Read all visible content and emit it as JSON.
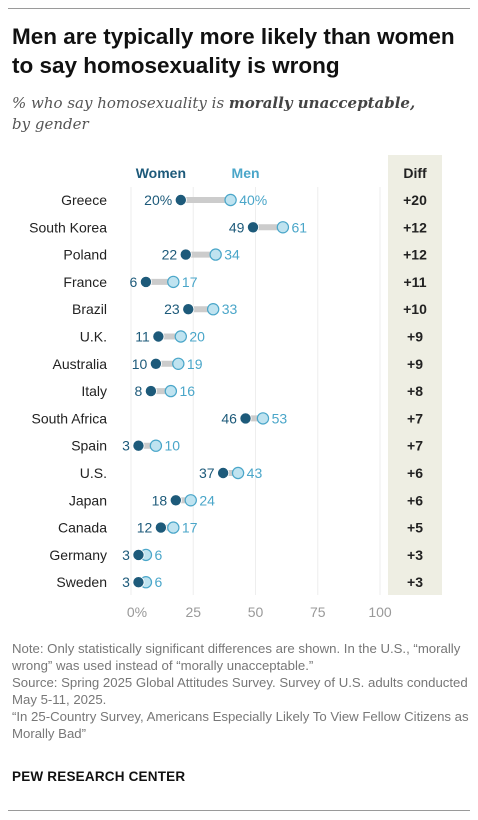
{
  "header": {
    "title": "Men are typically more likely than women to say homosexuality is wrong",
    "subtitle_prefix": "% who say homosexuality is ",
    "subtitle_emphasis": "morally unacceptable,",
    "subtitle_suffix": "by gender"
  },
  "colors": {
    "women": "#1d5a7a",
    "men": "#4aa6c9",
    "men_fill": "#bfe3f0",
    "connector": "#cccccc",
    "diff_column_bg": "#eeeee3",
    "axis_label": "#999999"
  },
  "chart_data": {
    "type": "dot_plot",
    "legend": [
      "Women",
      "Men"
    ],
    "diff_header": "Diff",
    "xlim": [
      0,
      100
    ],
    "x_ticks": [
      0,
      25,
      50,
      75,
      100
    ],
    "x_tick_labels": [
      "0%",
      "25",
      "50",
      "75",
      "100"
    ],
    "categories": [
      "Greece",
      "South Korea",
      "Poland",
      "France",
      "Brazil",
      "U.K.",
      "Australia",
      "Italy",
      "South Africa",
      "Spain",
      "U.S.",
      "Japan",
      "Canada",
      "Germany",
      "Sweden"
    ],
    "series": [
      {
        "name": "Women",
        "values": [
          20,
          49,
          22,
          6,
          23,
          11,
          10,
          8,
          46,
          3,
          37,
          18,
          12,
          3,
          3
        ]
      },
      {
        "name": "Men",
        "values": [
          40,
          61,
          34,
          17,
          33,
          20,
          19,
          16,
          53,
          10,
          43,
          24,
          17,
          6,
          6
        ]
      }
    ],
    "value_labels": {
      "women": [
        "20%",
        "49",
        "22",
        "6",
        "23",
        "11",
        "10",
        "8",
        "46",
        "3",
        "37",
        "18",
        "12",
        "3",
        "3"
      ],
      "men": [
        "40%",
        "61",
        "34",
        "17",
        "33",
        "20",
        "19",
        "16",
        "53",
        "10",
        "43",
        "24",
        "17",
        "6",
        "6"
      ]
    },
    "diff": [
      "+20",
      "+12",
      "+12",
      "+11",
      "+10",
      "+9",
      "+9",
      "+8",
      "+7",
      "+7",
      "+6",
      "+6",
      "+5",
      "+3",
      "+3"
    ]
  },
  "notes": {
    "note": "Note: Only statistically significant differences are shown. In the U.S., “morally wrong” was used instead of “morally unacceptable.”",
    "source": "Source: Spring 2025 Global Attitudes Survey. Survey of U.S. adults conducted May 5-11, 2025.",
    "report": "“In 25-Country Survey, Americans Especially Likely To View Fellow Citizens as Morally Bad”"
  },
  "brand": "PEW RESEARCH CENTER"
}
